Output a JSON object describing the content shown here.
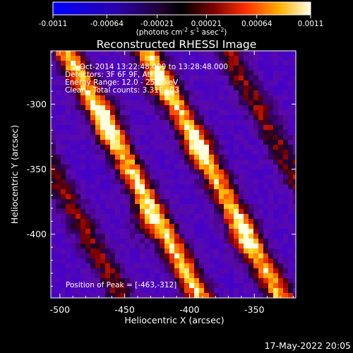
{
  "chart_data": {
    "type": "heatmap",
    "title": "Reconstructed RHESSI Image",
    "xlabel": "Heliocentric X (arcsec)",
    "ylabel": "Heliocentric Y (arcsec)",
    "x_ticks": [
      "-500",
      "-450",
      "-400",
      "-350"
    ],
    "y_ticks": [
      "-300",
      "-350",
      "-400"
    ],
    "x_tick_values": [
      -500,
      -450,
      -400,
      -350
    ],
    "y_tick_values": [
      -300,
      -350,
      -400
    ],
    "xlim": [
      -507,
      -318
    ],
    "ylim": [
      -449,
      -259
    ],
    "colorbar": {
      "ticks": [
        "-0.0011",
        "-0.00064",
        "-0.00021",
        "0.00021",
        "0.00064",
        "0.0011"
      ],
      "tick_values": [
        -0.0011,
        -0.00064,
        -0.00021,
        0.00021,
        0.00064,
        0.0011
      ],
      "units": "(photons cm",
      "units_exp1": "-2",
      "units_mid": " s",
      "units_exp2": "-1",
      "units_end": " asec",
      "units_exp3": "-2",
      "units_close": ")"
    },
    "info_lines": [
      "2-Oct-2014 13:22:48.000 to 13:28:48.000",
      "Detectors: 3F 6F 9F, Att 0",
      "Energy Range: 12.0 - 25.0 keV",
      "Clean   Total counts: 3.31E+03"
    ],
    "peak_label": "Position of Peak = [-463,-312]",
    "peak": [
      -463,
      -312
    ],
    "bands": [
      {
        "offset": 0.02,
        "strength": 0.55
      },
      {
        "offset": 0.34,
        "strength": 0.95
      },
      {
        "offset": 0.67,
        "strength": 0.92
      },
      {
        "offset": 1.0,
        "strength": 0.55
      }
    ],
    "bright_spots": [
      {
        "x": -463,
        "y": -312,
        "v": 1.0
      },
      {
        "x": -438,
        "y": -392,
        "v": 0.9
      },
      {
        "x": -393,
        "y": -333,
        "v": 0.85
      },
      {
        "x": -363,
        "y": -403,
        "v": 0.9
      },
      {
        "x": -426,
        "y": -288,
        "v": 0.7
      }
    ]
  },
  "footer": {
    "timestamp": "17-May-2022 20:05"
  }
}
